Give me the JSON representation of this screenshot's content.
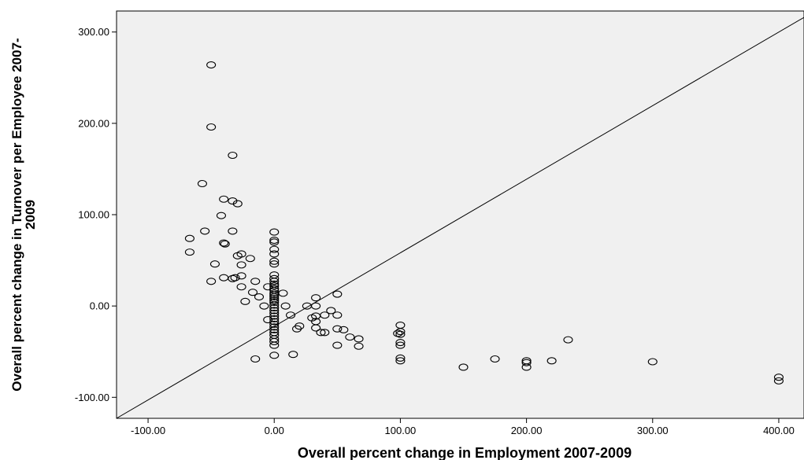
{
  "chart_data": {
    "type": "scatter",
    "title": "",
    "xlabel": "Overall percent change in Employment 2007-2009",
    "ylabel_lines": [
      "Overall percent change in Turnover per Employee 2007-",
      "2009"
    ],
    "xlim": [
      -125,
      420
    ],
    "ylim": [
      -123,
      323
    ],
    "xticks": [
      -100,
      0,
      100,
      200,
      300,
      400
    ],
    "yticks": [
      -100,
      0,
      100,
      200,
      300
    ],
    "xtick_labels": [
      "-100.00",
      "0.00",
      "100.00",
      "200.00",
      "300.00",
      "400.00"
    ],
    "ytick_labels": [
      "-100.00",
      "0.00",
      "100.00",
      "200.00",
      "300.00"
    ],
    "grid": false,
    "background": "#f0f0f0",
    "reference_line": {
      "from": [
        -125,
        -123
      ],
      "to": [
        420,
        316
      ]
    },
    "points": [
      [
        -50,
        264
      ],
      [
        -50,
        196
      ],
      [
        -33,
        165
      ],
      [
        -57,
        134
      ],
      [
        -40,
        117
      ],
      [
        -33,
        115
      ],
      [
        -29,
        112
      ],
      [
        -42,
        99
      ],
      [
        -55,
        82
      ],
      [
        -33,
        82
      ],
      [
        -67,
        74
      ],
      [
        -40,
        69
      ],
      [
        -39,
        68
      ],
      [
        -67,
        59
      ],
      [
        -26,
        57
      ],
      [
        -29,
        55
      ],
      [
        -19,
        52
      ],
      [
        -47,
        46
      ],
      [
        -26,
        45
      ],
      [
        -26,
        33
      ],
      [
        -40,
        31
      ],
      [
        -31,
        31
      ],
      [
        -33,
        30
      ],
      [
        -50,
        27
      ],
      [
        -15,
        27
      ],
      [
        -26,
        21
      ],
      [
        -5,
        21
      ],
      [
        -17,
        15
      ],
      [
        -12,
        10
      ],
      [
        -23,
        5
      ],
      [
        -8,
        0
      ],
      [
        -5,
        -15
      ],
      [
        -15,
        -58
      ],
      [
        0,
        81
      ],
      [
        0,
        72
      ],
      [
        0,
        70
      ],
      [
        0,
        62
      ],
      [
        0,
        57
      ],
      [
        0,
        49
      ],
      [
        0,
        46
      ],
      [
        0,
        34
      ],
      [
        0,
        30
      ],
      [
        0,
        27
      ],
      [
        0,
        24
      ],
      [
        0,
        22
      ],
      [
        0,
        19
      ],
      [
        0,
        17
      ],
      [
        0,
        14
      ],
      [
        0,
        12
      ],
      [
        0,
        10
      ],
      [
        0,
        8
      ],
      [
        0,
        6
      ],
      [
        0,
        4
      ],
      [
        0,
        1
      ],
      [
        0,
        -2
      ],
      [
        0,
        -5
      ],
      [
        0,
        -8
      ],
      [
        0,
        -11
      ],
      [
        0,
        -14
      ],
      [
        0,
        -17
      ],
      [
        0,
        -20
      ],
      [
        0,
        -23
      ],
      [
        0,
        -26
      ],
      [
        0,
        -29
      ],
      [
        0,
        -32
      ],
      [
        0,
        -36
      ],
      [
        0,
        -39
      ],
      [
        0,
        -43
      ],
      [
        0,
        -54
      ],
      [
        7,
        14
      ],
      [
        9,
        0
      ],
      [
        13,
        -10
      ],
      [
        15,
        -53
      ],
      [
        18,
        -25
      ],
      [
        20,
        -22
      ],
      [
        26,
        0
      ],
      [
        30,
        -13
      ],
      [
        33,
        9
      ],
      [
        33,
        0
      ],
      [
        33,
        -11
      ],
      [
        33,
        -17
      ],
      [
        33,
        -24
      ],
      [
        37,
        -29
      ],
      [
        40,
        -10
      ],
      [
        40,
        -29
      ],
      [
        45,
        -5
      ],
      [
        50,
        13
      ],
      [
        50,
        -10
      ],
      [
        50,
        -25
      ],
      [
        50,
        -43
      ],
      [
        55,
        -26
      ],
      [
        60,
        -34
      ],
      [
        67,
        -36
      ],
      [
        67,
        -44
      ],
      [
        100,
        -21
      ],
      [
        100,
        -28
      ],
      [
        100,
        -31
      ],
      [
        98,
        -30
      ],
      [
        100,
        -40
      ],
      [
        100,
        -43
      ],
      [
        100,
        -57
      ],
      [
        100,
        -60
      ],
      [
        150,
        -67
      ],
      [
        175,
        -58
      ],
      [
        200,
        -60
      ],
      [
        200,
        -62
      ],
      [
        200,
        -67
      ],
      [
        220,
        -60
      ],
      [
        233,
        -37
      ],
      [
        300,
        -61
      ],
      [
        400,
        -78
      ],
      [
        400,
        -82
      ]
    ]
  }
}
